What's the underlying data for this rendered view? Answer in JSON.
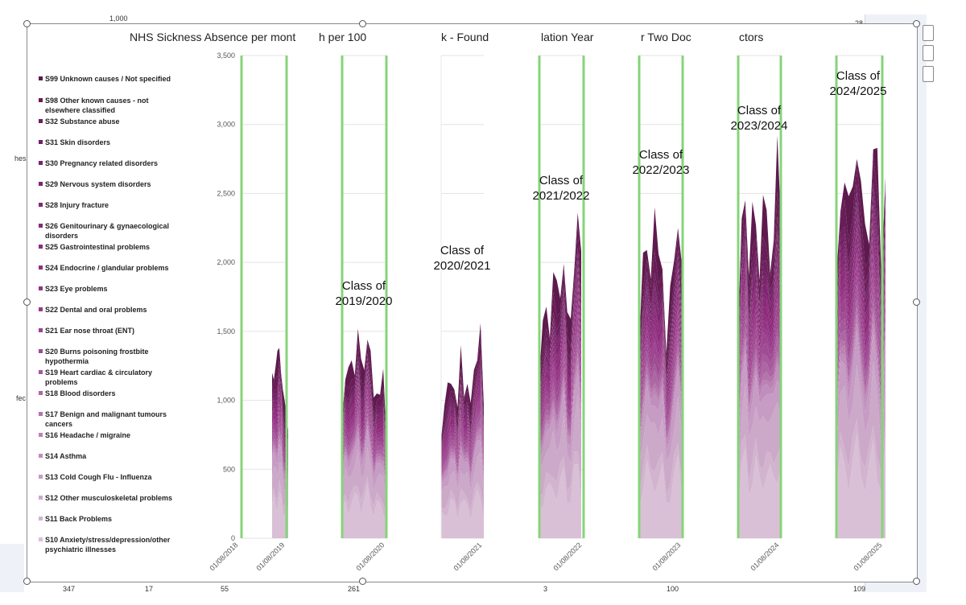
{
  "sheet": {
    "top_value": "1,000",
    "top_right": "28",
    "left_fragments": [
      "hes",
      "fec"
    ],
    "bottom_values": [
      "347",
      "17",
      "55",
      "261",
      "3",
      "100",
      "109"
    ]
  },
  "title_fragments": [
    "NHS Sickness Absence per mont",
    "h per 100",
    "k - Found",
    "lation Year",
    "r Two Doc",
    "ctors"
  ],
  "colors": {
    "panel_border": "#86d47a",
    "gridline": "#e3e3e3",
    "axis_text": "#555555"
  },
  "legend": [
    {
      "label": "S99 Unknown causes / Not specified",
      "color": "#5e1a4e"
    },
    {
      "label": "S98 Other known causes - not elsewhere classified",
      "color": "#681d57"
    },
    {
      "label": "S32 Substance abuse",
      "color": "#6e2060"
    },
    {
      "label": "S31 Skin disorders",
      "color": "#722265"
    },
    {
      "label": "S30 Pregnancy related disorders",
      "color": "#7a246b"
    },
    {
      "label": "S29 Nervous system disorders",
      "color": "#7e2670"
    },
    {
      "label": "S28 Injury fracture",
      "color": "#842874"
    },
    {
      "label": "S26 Genitourinary & gynaecological disorders",
      "color": "#8a2a78"
    },
    {
      "label": "S25 Gastrointestinal problems",
      "color": "#8e2c7c"
    },
    {
      "label": "S24 Endocrine / glandular problems",
      "color": "#912f80"
    },
    {
      "label": "S23 Eye problems",
      "color": "#943486"
    },
    {
      "label": "S22 Dental and oral problems",
      "color": "#983a8a"
    },
    {
      "label": "S21 Ear nose throat (ENT)",
      "color": "#9c448e"
    },
    {
      "label": "S20 Burns poisoning frostbite hypothermia",
      "color": "#a04c94"
    },
    {
      "label": "S19 Heart cardiac & circulatory problems",
      "color": "#a65a9c"
    },
    {
      "label": "S18 Blood disorders",
      "color": "#ad66a4"
    },
    {
      "label": "S17 Benign and malignant tumours cancers",
      "color": "#b474ac"
    },
    {
      "label": "S16 Headache / migraine",
      "color": "#bb82b4"
    },
    {
      "label": "S14 Asthma",
      "color": "#c08ebc"
    },
    {
      "label": "S13 Cold Cough Flu - Influenza",
      "color": "#c69cc4"
    },
    {
      "label": "S12 Other musculoskeletal problems",
      "color": "#cca8c9"
    },
    {
      "label": "S11 Back Problems",
      "color": "#d2b4cf"
    },
    {
      "label": "S10 Anxiety/stress/depression/other psychiatric illnesses",
      "color": "#d9c0d6"
    }
  ],
  "chart_data": {
    "type": "area",
    "stacked": true,
    "title": "NHS Sickness Absence per month per 100k - Foundation Year Two Doctors",
    "xlabel": "",
    "ylabel": "",
    "ylim": [
      0,
      3500
    ],
    "y_ticks": [
      "0",
      "500",
      "1,000",
      "1,500",
      "2,000",
      "2,500",
      "3,000",
      "3,500"
    ],
    "x_ticks": [
      "01/08/2018",
      "01/08/2019",
      "01/08/2020",
      "01/08/2021",
      "01/08/2022",
      "01/08/2023",
      "01/08/2024",
      "01/08/2025"
    ],
    "grid": true,
    "legend_placement": "left",
    "panels": [
      {
        "label": "",
        "totals": [
          1200,
          1150,
          1250,
          1360,
          1380,
          1200,
          1080,
          1000,
          900,
          780
        ]
      },
      {
        "label": "Class of 2019/2020",
        "totals": [
          860,
          1150,
          1240,
          1290,
          1180,
          1520,
          1300,
          1220,
          1440,
          1360,
          1020,
          1050,
          1040,
          1230,
          720
        ]
      },
      {
        "label": "Class of 2020/2021",
        "totals": [
          720,
          960,
          1130,
          1120,
          1080,
          950,
          1400,
          1020,
          1120,
          980,
          1220,
          1290,
          1560,
          960
        ]
      },
      {
        "label": "Class of 2021/2022",
        "totals": [
          1180,
          1580,
          1680,
          1450,
          1930,
          1870,
          1740,
          1990,
          1640,
          1590,
          1940,
          2360,
          2080
        ]
      },
      {
        "label": "Class of 2022/2023",
        "totals": [
          1390,
          2070,
          2090,
          1880,
          2400,
          2060,
          1950,
          1340,
          1830,
          2010,
          2250,
          1990
        ]
      },
      {
        "label": "Class of 2023/2024",
        "totals": [
          1520,
          2320,
          2450,
          1900,
          2440,
          2270,
          1870,
          2490,
          2380,
          1920,
          2160,
          2920,
          2300
        ]
      },
      {
        "label": "Class of 2024/2025",
        "totals": [
          1900,
          2370,
          2580,
          2480,
          2550,
          2750,
          2590,
          2280,
          2130,
          2820,
          2830,
          1890,
          2620
        ]
      }
    ]
  }
}
